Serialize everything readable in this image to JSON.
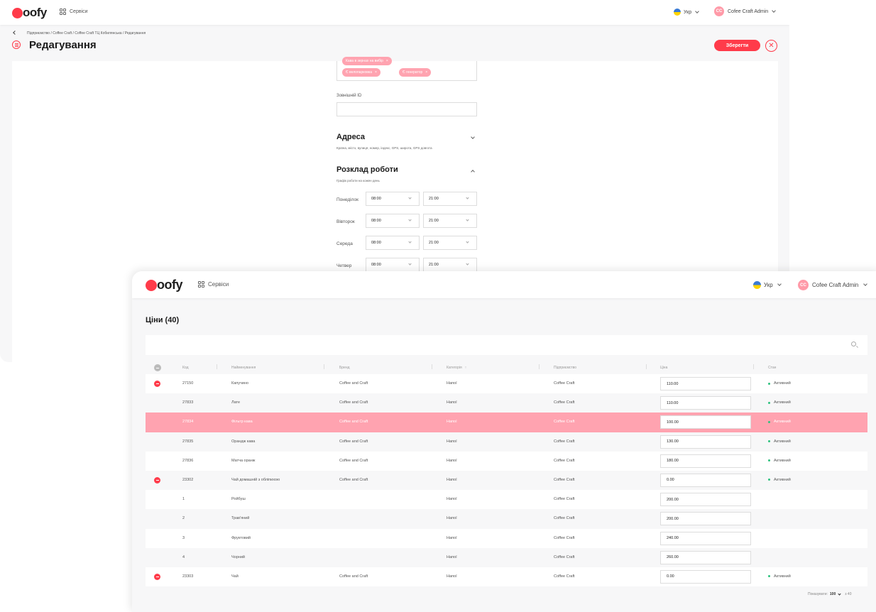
{
  "back_window": {
    "brand": "oofy",
    "services_label": "Сервіси",
    "lang_label": "Укр",
    "user_initials": "CC",
    "user_name": "Cofee Craft Admin",
    "breadcrumb": "Підприємство / Coffee Craft / Coffee Craft ТЦ Кобилянська / Редагування",
    "page_title": "Редагування",
    "save_label": "Зберегти",
    "tags": [
      "Кава в зернах на вибір",
      "Є велопарковка",
      "Є генератор"
    ],
    "external_id_label": "Зовнішній ID",
    "external_id_value": "",
    "address_title": "Адреса",
    "address_subtitle": "Країна, місто, вулиця, номер, індекс, GPS, широта, GPS довгота",
    "schedule_title": "Розклад роботи",
    "schedule_subtitle": "Графік роботи на кожен день",
    "schedule": [
      {
        "day": "Понеділок",
        "open": "08:00",
        "close": "21:00"
      },
      {
        "day": "Вівторок",
        "open": "08:00",
        "close": "21:00"
      },
      {
        "day": "Середа",
        "open": "08:00",
        "close": "21:00"
      },
      {
        "day": "Четвер",
        "open": "08:00",
        "close": "21:00"
      }
    ]
  },
  "front_window": {
    "brand": "oofy",
    "services_label": "Сервіси",
    "lang_label": "Укр",
    "user_initials": "CC",
    "user_name": "Cofee Craft Admin",
    "title": "Ціни (40)",
    "columns": [
      "Код",
      "Найменування",
      "Бренд",
      "Категорія",
      "Підприємство",
      "Ціна",
      "Стан"
    ],
    "rows": [
      {
        "code": "27150",
        "name": "Капучино",
        "brand": "Coffee and Craft",
        "category": "Напої",
        "company": "Coffee Craft",
        "price": "110.00",
        "status": "Активний",
        "removable": true,
        "selected": false
      },
      {
        "code": "27833",
        "name": "Лате",
        "brand": "Coffee and Craft",
        "category": "Напої",
        "company": "Coffee Craft",
        "price": "110.00",
        "status": "Активний",
        "removable": false,
        "selected": false
      },
      {
        "code": "27834",
        "name": "Фільтр кава",
        "brand": "Coffee and Craft",
        "category": "Напої",
        "company": "Coffee Craft",
        "price": "100.00",
        "status": "Активний",
        "removable": false,
        "selected": true
      },
      {
        "code": "27835",
        "name": "Орандж кава",
        "brand": "Coffee and Craft",
        "category": "Напої",
        "company": "Coffee Craft",
        "price": "130.00",
        "status": "Активний",
        "removable": false,
        "selected": false
      },
      {
        "code": "27836",
        "name": "Матча оранж",
        "brand": "Coffee and Craft",
        "category": "Напої",
        "company": "Coffee Craft",
        "price": "180.00",
        "status": "Активний",
        "removable": false,
        "selected": false
      },
      {
        "code": "23302",
        "name": "Чай домашній з обліпихою",
        "brand": "Coffee and Craft",
        "category": "Напої",
        "company": "Coffee Craft",
        "price": "0.00",
        "status": "Активний",
        "removable": true,
        "selected": false
      },
      {
        "code": "1",
        "name": "Ройбуш",
        "brand": "",
        "category": "Напої",
        "company": "Coffee Craft",
        "price": "200.00",
        "status": "",
        "removable": false,
        "selected": false
      },
      {
        "code": "2",
        "name": "Трав'яний",
        "brand": "",
        "category": "Напої",
        "company": "Coffee Craft",
        "price": "200.00",
        "status": "",
        "removable": false,
        "selected": false
      },
      {
        "code": "3",
        "name": "Фруктовий",
        "brand": "",
        "category": "Напої",
        "company": "Coffee Craft",
        "price": "240.00",
        "status": "",
        "removable": false,
        "selected": false
      },
      {
        "code": "4",
        "name": "Чорний",
        "brand": "",
        "category": "Напої",
        "company": "Coffee Craft",
        "price": "260.00",
        "status": "",
        "removable": false,
        "selected": false
      },
      {
        "code": "23303",
        "name": "Чай",
        "brand": "Coffee and Craft",
        "category": "Напої",
        "company": "Coffee Craft",
        "price": "0.00",
        "status": "Активний",
        "removable": true,
        "selected": false
      }
    ],
    "pager": {
      "label": "Показувати:",
      "value": "100",
      "total": "з 40"
    }
  },
  "colors": {
    "accent": "#ff3b4a",
    "selected_row": "#ffa3b0",
    "status_active": "#2ec27e"
  }
}
